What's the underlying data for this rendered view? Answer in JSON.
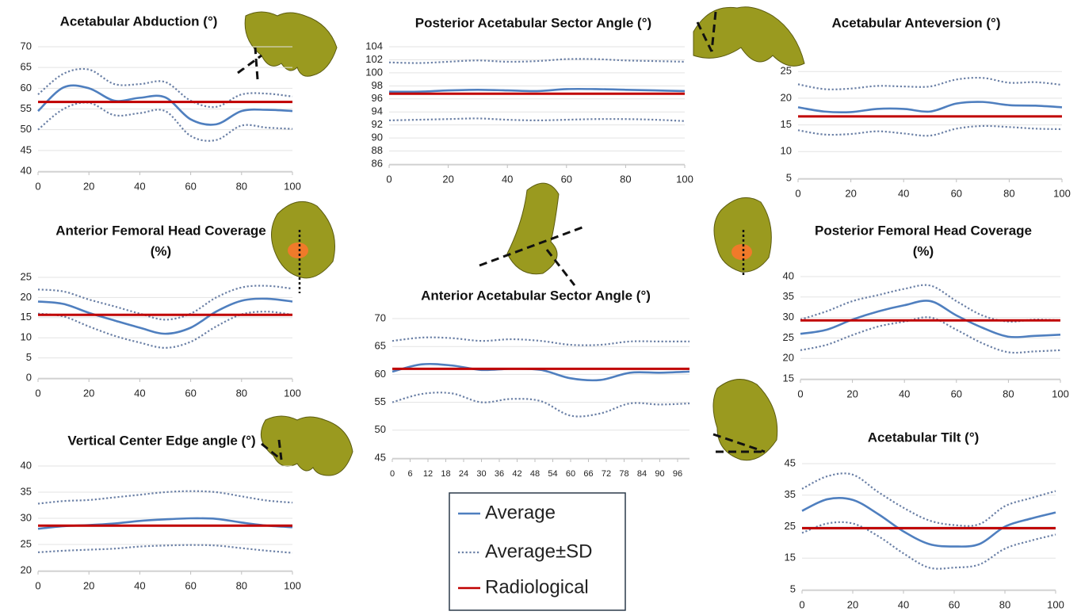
{
  "chart_data": [
    {
      "type": "line",
      "title": [
        "Acetabular Abduction (°)"
      ],
      "x": [
        0,
        10,
        20,
        30,
        40,
        50,
        60,
        70,
        80,
        90,
        100
      ],
      "xlim": [
        0,
        100
      ],
      "xticks": [
        0,
        20,
        40,
        60,
        80,
        100
      ],
      "ylim": [
        40,
        70
      ],
      "yticks": [
        40,
        45,
        50,
        55,
        60,
        65,
        70
      ],
      "grid": true,
      "series": [
        {
          "color": "#4f7fbf",
          "dash": "solid",
          "values": [
            54.5,
            60.2,
            60,
            57,
            57.7,
            57.8,
            52.5,
            51.3,
            54.5,
            54.8,
            54.5
          ]
        },
        {
          "color": "#6b80a6",
          "dash": "dotted",
          "values": [
            58.5,
            63.5,
            64.5,
            61,
            61,
            61.5,
            57,
            55.5,
            58.5,
            58.7,
            58
          ]
        },
        {
          "color": "#6b80a6",
          "dash": "dotted",
          "values": [
            50,
            55,
            56.5,
            53.5,
            54,
            54.5,
            48.5,
            47.5,
            51,
            50.5,
            50.2
          ]
        }
      ],
      "reference": 56.7,
      "reference_color": "#c00000"
    },
    {
      "type": "line",
      "title": [
        "Posterior Acetabular Sector Angle (°)"
      ],
      "x": [
        0,
        10,
        20,
        30,
        40,
        50,
        60,
        70,
        80,
        90,
        100
      ],
      "xlim": [
        0,
        100
      ],
      "xticks": [
        0,
        20,
        40,
        60,
        80,
        100
      ],
      "ylim": [
        86,
        104
      ],
      "yticks": [
        86,
        88,
        90,
        92,
        94,
        96,
        98,
        100,
        102,
        104
      ],
      "grid": true,
      "series": [
        {
          "color": "#4f7fbf",
          "dash": "solid",
          "values": [
            97.1,
            97.1,
            97.3,
            97.4,
            97.3,
            97.2,
            97.5,
            97.5,
            97.4,
            97.3,
            97.2
          ]
        },
        {
          "color": "#6b80a6",
          "dash": "dotted",
          "values": [
            101.6,
            101.5,
            101.7,
            101.9,
            101.7,
            101.8,
            102.1,
            102.1,
            101.9,
            101.8,
            101.7
          ]
        },
        {
          "color": "#6b80a6",
          "dash": "dotted",
          "values": [
            92.7,
            92.8,
            92.9,
            93,
            92.8,
            92.7,
            92.8,
            92.9,
            92.9,
            92.8,
            92.6
          ]
        }
      ],
      "reference": 96.8,
      "reference_color": "#c00000"
    },
    {
      "type": "line",
      "title": [
        "Acetabular Anteversion (°)"
      ],
      "x": [
        0,
        10,
        20,
        30,
        40,
        50,
        60,
        70,
        80,
        90,
        100
      ],
      "xlim": [
        0,
        100
      ],
      "xticks": [
        0,
        20,
        40,
        60,
        80,
        100
      ],
      "ylim": [
        5,
        28
      ],
      "yticks": [
        5,
        10,
        15,
        20,
        25
      ],
      "grid": true,
      "series": [
        {
          "color": "#4f7fbf",
          "dash": "solid",
          "values": [
            18.3,
            17.5,
            17.4,
            18,
            18,
            17.5,
            19,
            19.3,
            18.7,
            18.6,
            18.3
          ]
        },
        {
          "color": "#6b80a6",
          "dash": "dotted",
          "values": [
            22.6,
            21.7,
            21.8,
            22.3,
            22.2,
            22.2,
            23.5,
            23.8,
            22.9,
            23,
            22.5
          ]
        },
        {
          "color": "#6b80a6",
          "dash": "dotted",
          "values": [
            14,
            13.2,
            13.3,
            13.8,
            13.4,
            13,
            14.3,
            14.8,
            14.6,
            14.3,
            14.2
          ]
        }
      ],
      "reference": 16.6,
      "reference_color": "#c00000"
    },
    {
      "type": "line",
      "title": [
        "Anterior Femoral Head Coverage",
        "(%)"
      ],
      "x": [
        0,
        10,
        20,
        30,
        40,
        50,
        60,
        70,
        80,
        90,
        100
      ],
      "xlim": [
        0,
        100
      ],
      "xticks": [
        0,
        20,
        40,
        60,
        80,
        100
      ],
      "ylim": [
        0,
        25
      ],
      "yticks": [
        0,
        5,
        10,
        15,
        20,
        25
      ],
      "grid": true,
      "series": [
        {
          "color": "#4f7fbf",
          "dash": "solid",
          "values": [
            19,
            18.4,
            16.2,
            14.3,
            12.5,
            11,
            12.5,
            16.5,
            19.2,
            19.7,
            19
          ]
        },
        {
          "color": "#6b80a6",
          "dash": "dotted",
          "values": [
            22,
            21.5,
            19.5,
            17.8,
            16,
            14.5,
            16,
            20,
            22.5,
            22.9,
            22.2
          ]
        },
        {
          "color": "#6b80a6",
          "dash": "dotted",
          "values": [
            16,
            15.3,
            12.8,
            10.5,
            8.8,
            7.5,
            9,
            12.8,
            15.8,
            16.5,
            15.7
          ]
        }
      ],
      "reference": 15.7,
      "reference_color": "#c00000"
    },
    {
      "type": "line",
      "title": [
        "Anterior Acetabular Sector Angle (°)"
      ],
      "x": [
        0,
        10,
        20,
        30,
        40,
        50,
        60,
        70,
        80,
        90,
        100
      ],
      "xlim": [
        0,
        100
      ],
      "xticks": [
        0,
        6,
        12,
        18,
        24,
        30,
        36,
        42,
        48,
        54,
        60,
        66,
        72,
        78,
        84,
        90,
        96
      ],
      "ylim": [
        45,
        70
      ],
      "yticks": [
        45,
        50,
        55,
        60,
        65,
        70
      ],
      "grid": true,
      "series": [
        {
          "color": "#4f7fbf",
          "dash": "solid",
          "values": [
            60.5,
            61.8,
            61.6,
            60.8,
            61,
            60.8,
            59.3,
            59,
            60.3,
            60.3,
            60.5
          ]
        },
        {
          "color": "#6b80a6",
          "dash": "dotted",
          "values": [
            66,
            66.6,
            66.5,
            66,
            66.3,
            66,
            65.3,
            65.3,
            65.9,
            65.9,
            65.9
          ]
        },
        {
          "color": "#6b80a6",
          "dash": "dotted",
          "values": [
            55,
            56.5,
            56.6,
            55,
            55.6,
            55.2,
            52.6,
            53,
            54.8,
            54.6,
            54.8
          ]
        }
      ],
      "reference": 61,
      "reference_color": "#c00000"
    },
    {
      "type": "line",
      "title": [
        "Posterior Femoral Head Coverage",
        "(%)"
      ],
      "x": [
        0,
        10,
        20,
        30,
        40,
        50,
        60,
        70,
        80,
        90,
        100
      ],
      "xlim": [
        0,
        100
      ],
      "xticks": [
        0,
        20,
        40,
        60,
        80,
        100
      ],
      "ylim": [
        15,
        40
      ],
      "yticks": [
        15,
        20,
        25,
        30,
        35,
        40
      ],
      "grid": true,
      "series": [
        {
          "color": "#4f7fbf",
          "dash": "solid",
          "values": [
            26,
            27,
            29.5,
            31.5,
            33,
            34,
            30.5,
            27.5,
            25.3,
            25.5,
            25.8
          ]
        },
        {
          "color": "#6b80a6",
          "dash": "dotted",
          "values": [
            29.5,
            31.5,
            34,
            35.5,
            37,
            37.8,
            34,
            30.5,
            29,
            29.5,
            29.3
          ]
        },
        {
          "color": "#6b80a6",
          "dash": "dotted",
          "values": [
            22,
            23.3,
            25.7,
            27.8,
            29,
            30,
            27,
            23.7,
            21.5,
            21.7,
            22
          ]
        }
      ],
      "reference": 29.3,
      "reference_color": "#c00000"
    },
    {
      "type": "line",
      "title": [
        "Vertical Center Edge angle (°)"
      ],
      "x": [
        0,
        10,
        20,
        30,
        40,
        50,
        60,
        70,
        80,
        90,
        100
      ],
      "xlim": [
        0,
        100
      ],
      "xticks": [
        0,
        20,
        40,
        60,
        80,
        100
      ],
      "ylim": [
        20,
        40
      ],
      "yticks": [
        20,
        25,
        30,
        35,
        40
      ],
      "grid": true,
      "series": [
        {
          "color": "#4f7fbf",
          "dash": "solid",
          "values": [
            28,
            28.5,
            28.7,
            29,
            29.5,
            29.8,
            30,
            29.9,
            29.2,
            28.6,
            28.3
          ]
        },
        {
          "color": "#6b80a6",
          "dash": "dotted",
          "values": [
            32.8,
            33.3,
            33.5,
            34,
            34.5,
            35,
            35.2,
            35,
            34.2,
            33.4,
            33
          ]
        },
        {
          "color": "#6b80a6",
          "dash": "dotted",
          "values": [
            23.5,
            23.8,
            24,
            24.2,
            24.6,
            24.8,
            24.9,
            24.8,
            24.3,
            23.8,
            23.4
          ]
        }
      ],
      "reference": 28.6,
      "reference_color": "#c00000"
    },
    {
      "type": "line",
      "title": [
        "Acetabular Tilt (°)"
      ],
      "x": [
        0,
        10,
        20,
        30,
        40,
        50,
        60,
        70,
        80,
        90,
        100
      ],
      "xlim": [
        0,
        100
      ],
      "xticks": [
        0,
        20,
        40,
        60,
        80,
        100
      ],
      "ylim": [
        5,
        45
      ],
      "yticks": [
        5,
        15,
        25,
        35,
        45
      ],
      "grid": true,
      "series": [
        {
          "color": "#4f7fbf",
          "dash": "solid",
          "values": [
            30,
            33.7,
            33.5,
            29,
            23.5,
            19.5,
            18.7,
            19.5,
            25,
            27.5,
            29.5
          ]
        },
        {
          "color": "#6b80a6",
          "dash": "dotted",
          "values": [
            37,
            41,
            41.5,
            36,
            31,
            27,
            25.5,
            25.8,
            31.5,
            34,
            36.3
          ]
        },
        {
          "color": "#6b80a6",
          "dash": "dotted",
          "values": [
            23,
            26,
            26,
            22,
            16.5,
            12,
            12,
            13,
            18,
            20.5,
            22.5
          ]
        }
      ],
      "reference": 24.5,
      "reference_color": "#c00000"
    }
  ],
  "legend": [
    {
      "name": "Average",
      "color": "#4f7fbf",
      "dash": "solid"
    },
    {
      "name": "Average±SD",
      "color": "#6b80a6",
      "dash": "dotted"
    },
    {
      "name": "Radiological",
      "color": "#c00000",
      "dash": "solid"
    }
  ]
}
